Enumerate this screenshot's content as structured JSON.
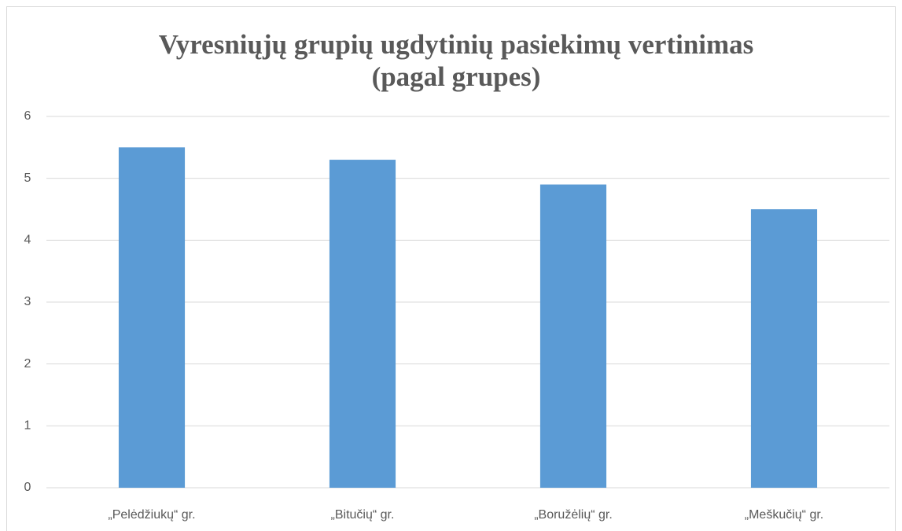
{
  "chart_data": {
    "type": "bar",
    "title": [
      "Vyresniųjų grupių ugdytinių pasiekimų vertinimas",
      "(pagal grupes)"
    ],
    "categories": [
      "„Pelėdžiukų“ gr.",
      "„Bitučių“ gr.",
      "„Boružėlių“ gr.",
      "„Meškučių“ gr."
    ],
    "values": [
      5.5,
      5.3,
      4.9,
      4.5
    ],
    "color": "#5b9bd5",
    "ylim": [
      0,
      6
    ],
    "yticks": [
      0,
      1,
      2,
      3,
      4,
      5,
      6
    ],
    "grid": true
  }
}
